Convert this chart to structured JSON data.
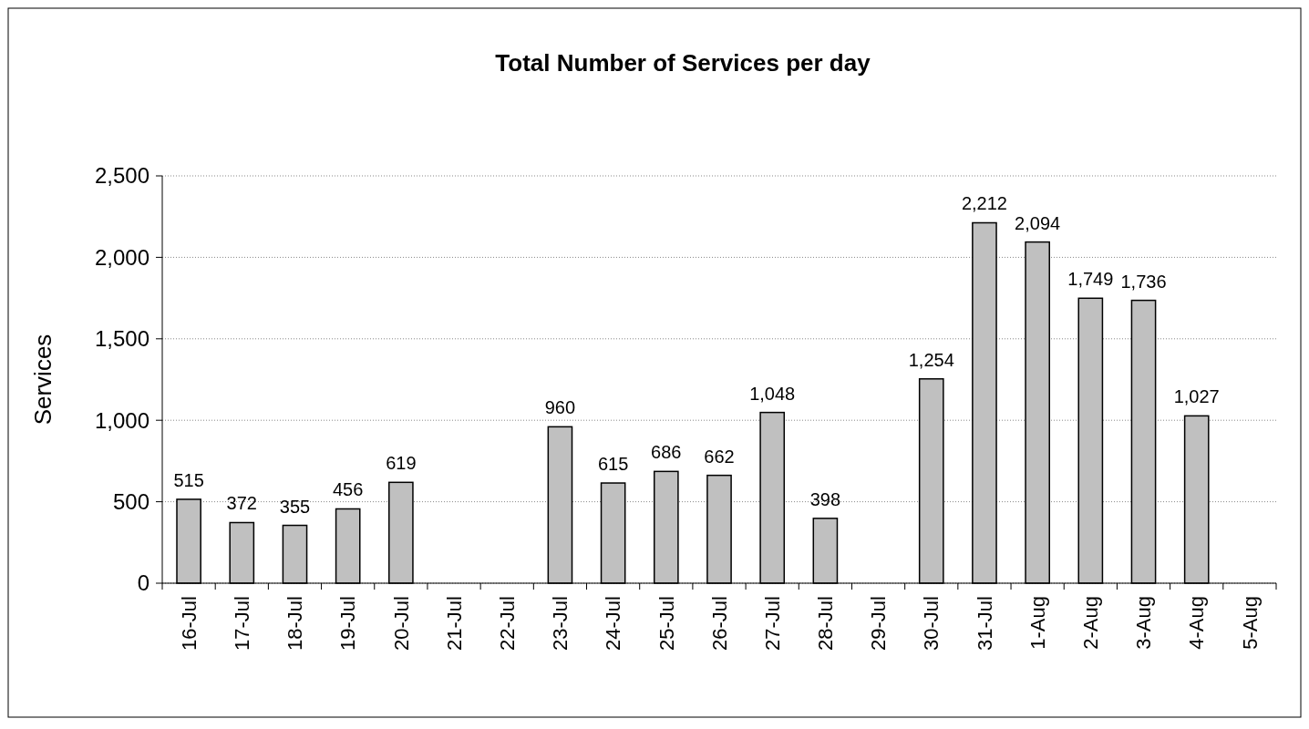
{
  "chart_data": {
    "type": "bar",
    "title": "Total Number of Services per day",
    "ylabel": "Services",
    "categories": [
      "16-Jul",
      "17-Jul",
      "18-Jul",
      "19-Jul",
      "20-Jul",
      "21-Jul",
      "22-Jul",
      "23-Jul",
      "24-Jul",
      "25-Jul",
      "26-Jul",
      "27-Jul",
      "28-Jul",
      "29-Jul",
      "30-Jul",
      "31-Jul",
      "1-Aug",
      "2-Aug",
      "3-Aug",
      "4-Aug",
      "5-Aug"
    ],
    "values": [
      515,
      372,
      355,
      456,
      619,
      null,
      null,
      960,
      615,
      686,
      662,
      1048,
      398,
      null,
      1254,
      2212,
      2094,
      1749,
      1736,
      1027,
      null
    ],
    "value_labels": [
      "515",
      "372",
      "355",
      "456",
      "619",
      null,
      null,
      "960",
      "615",
      "686",
      "662",
      "1,048",
      "398",
      null,
      "1,254",
      "2,212",
      "2,094",
      "1,749",
      "1,736",
      "1,027",
      null
    ],
    "color": "#c0c0c0",
    "ylim": [
      0,
      2500
    ],
    "yticks": [
      0,
      500,
      {
        "value": 1000,
        "label": "1,000"
      },
      {
        "value": 1500,
        "label": "1,500"
      },
      {
        "value": 2000,
        "label": "2,000"
      },
      {
        "value": 2500,
        "label": "2,500"
      }
    ],
    "grid": "y"
  }
}
